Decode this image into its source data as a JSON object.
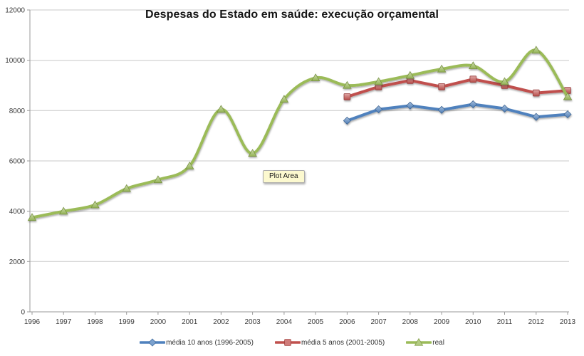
{
  "chart_data": {
    "type": "line",
    "title": "Despesas do Estado em saúde: execução orçamental",
    "categories": [
      1996,
      1997,
      1998,
      1999,
      2000,
      2001,
      2002,
      2003,
      2004,
      2005,
      2006,
      2007,
      2008,
      2009,
      2010,
      2011,
      2012,
      2013
    ],
    "ylim": [
      0,
      12000
    ],
    "ytick_interval": 2000,
    "grid": true,
    "legend_position": "bottom",
    "series": [
      {
        "name": "média 10 anos (1996-2005)",
        "color": "#4f81bd",
        "marker": "diamond",
        "smooth": false,
        "values": [
          null,
          null,
          null,
          null,
          null,
          null,
          null,
          null,
          null,
          null,
          7600,
          8050,
          8200,
          8030,
          8250,
          8080,
          7750,
          7850
        ]
      },
      {
        "name": "média 5 anos (2001-2005)",
        "color": "#c0504d",
        "marker": "square",
        "smooth": false,
        "values": [
          null,
          null,
          null,
          null,
          null,
          null,
          null,
          null,
          null,
          null,
          8550,
          8950,
          9200,
          8950,
          9250,
          9000,
          8700,
          8800
        ]
      },
      {
        "name": "real",
        "color": "#9bbb59",
        "marker": "triangle",
        "smooth": true,
        "values": [
          3750,
          4000,
          4250,
          4900,
          5250,
          5800,
          8050,
          6300,
          8450,
          9300,
          9000,
          9150,
          9400,
          9650,
          9780,
          9150,
          10400,
          8550
        ]
      }
    ]
  },
  "tooltip": {
    "label": "Plot Area"
  },
  "colors": {
    "gridline": "#c9c9c9",
    "axis": "#9a9a9a",
    "tick_text": "#3c3c3c",
    "background": "#ffffff",
    "tooltip_bg": "#fcf9cf"
  }
}
